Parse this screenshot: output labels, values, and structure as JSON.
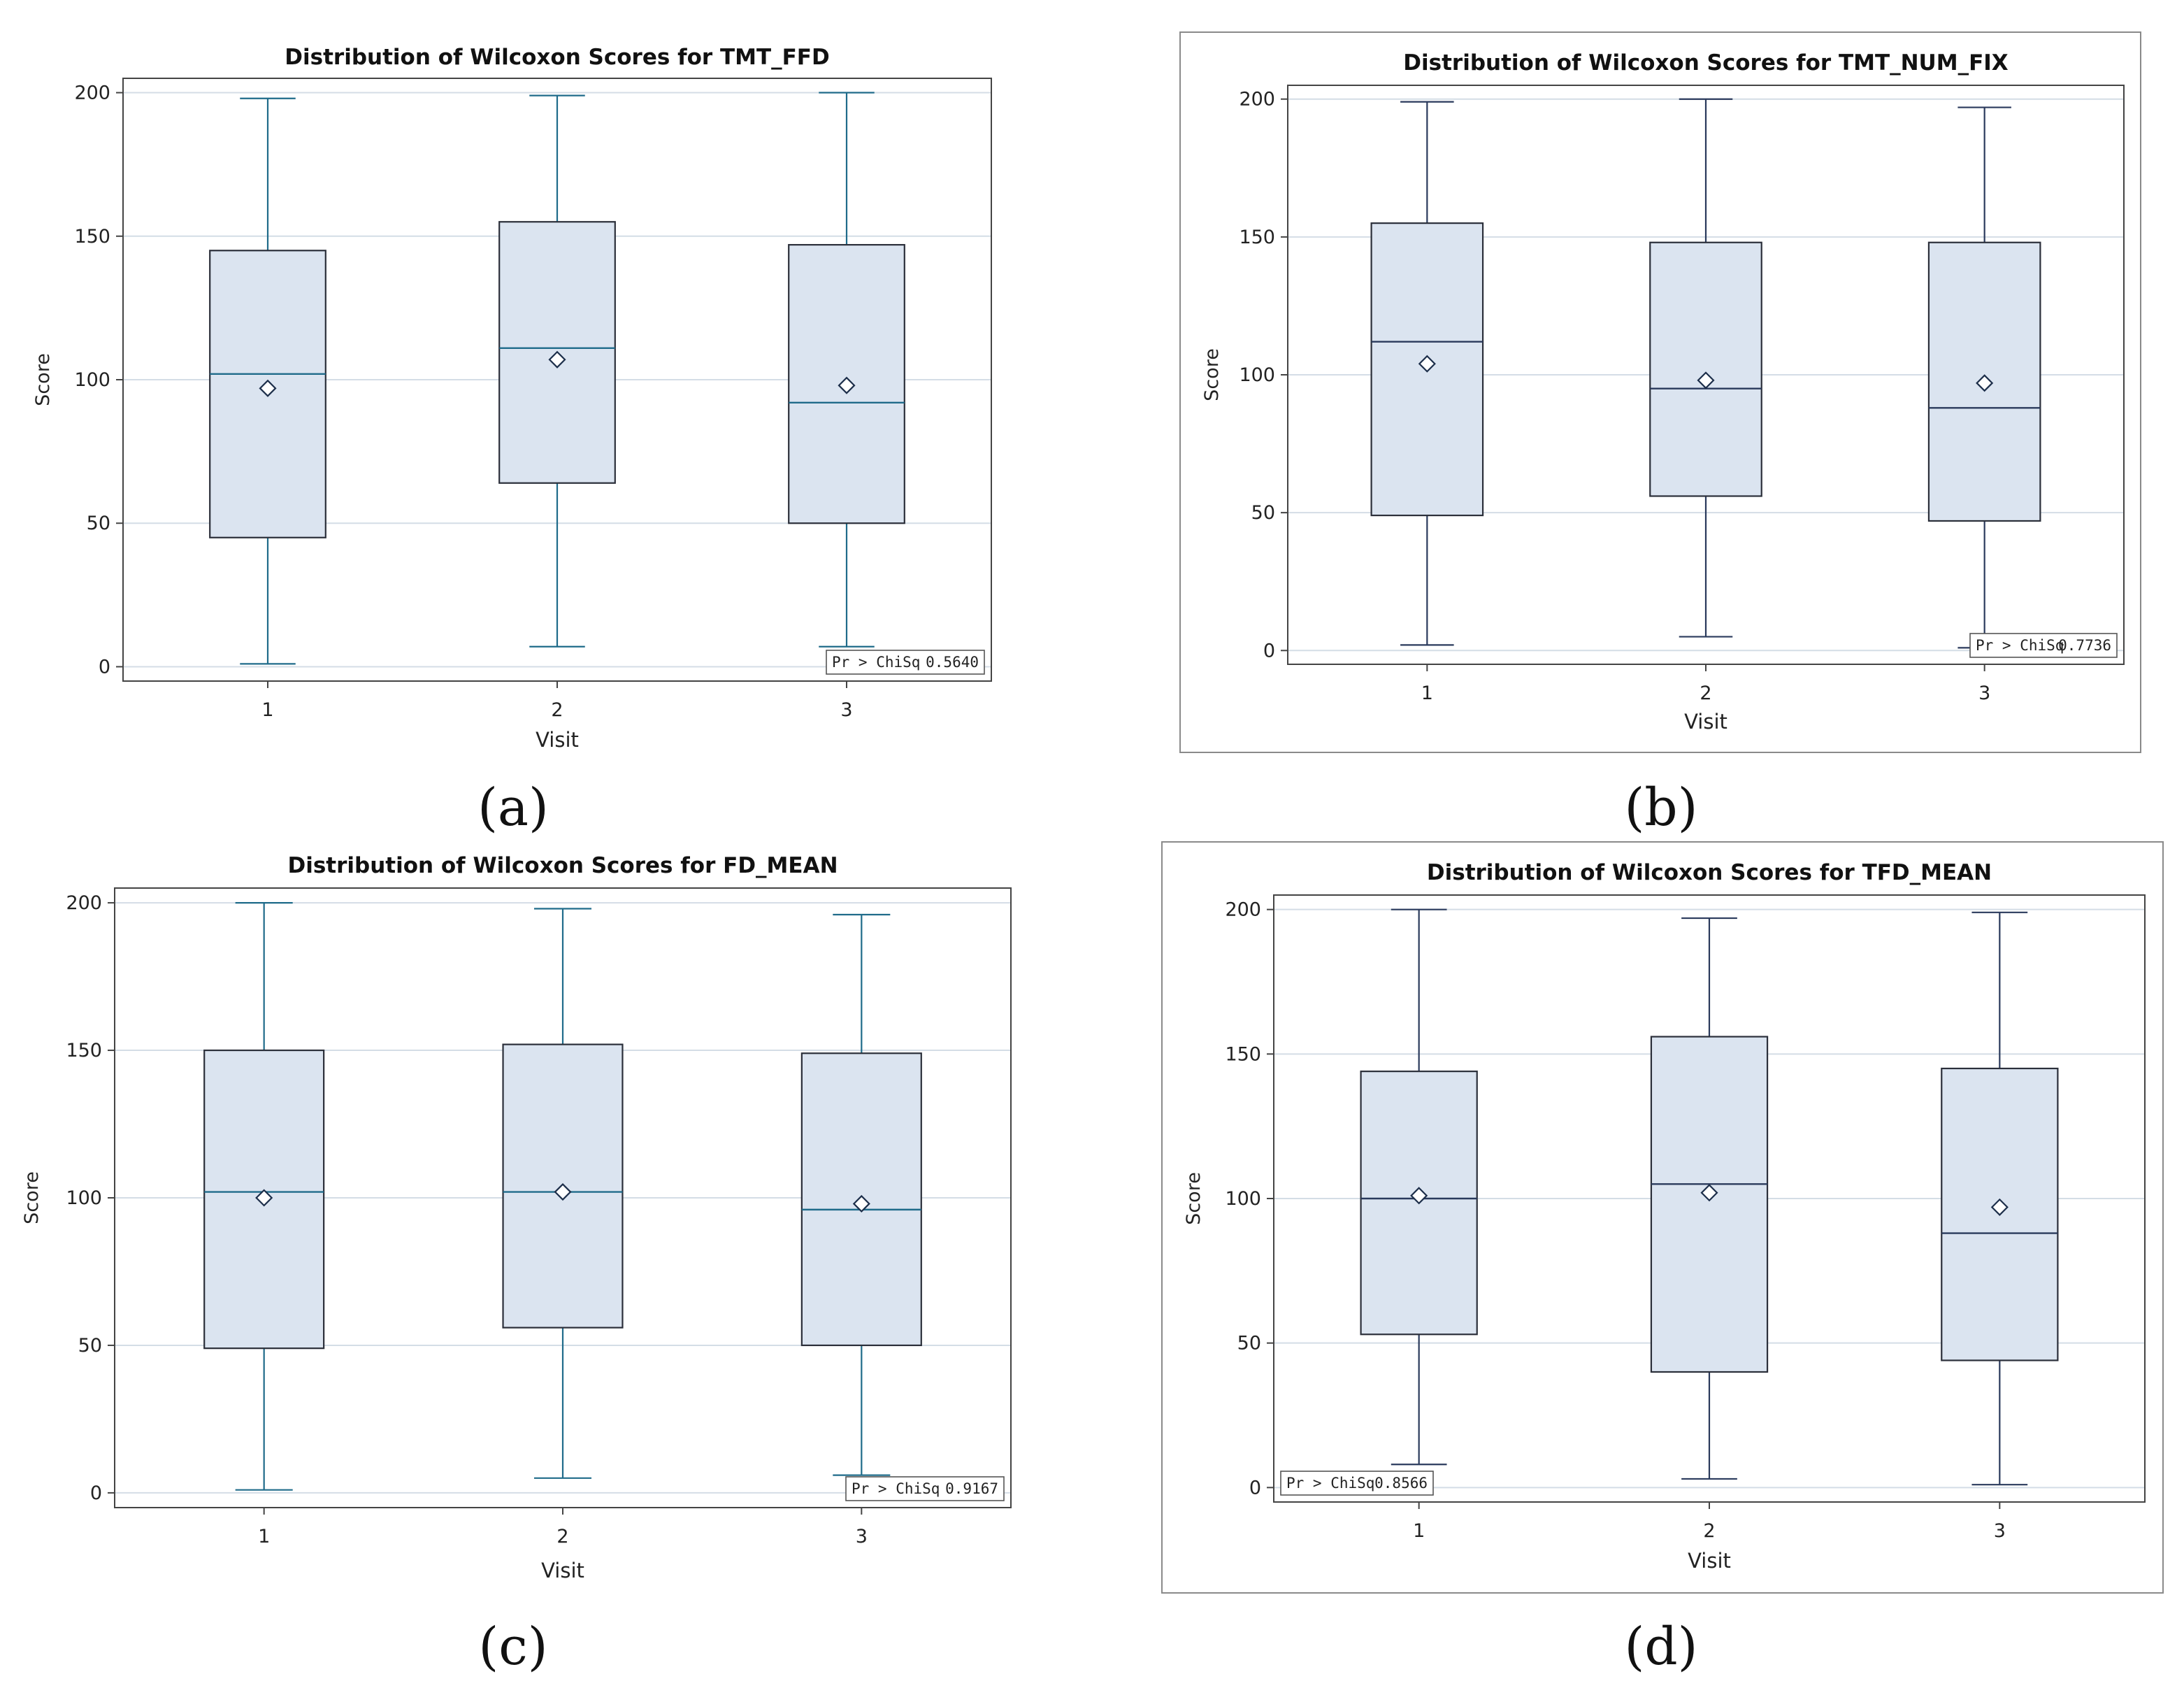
{
  "chart_data": [
    {
      "type": "box",
      "panel_label": "(a)",
      "title": "Distribution of Wilcoxon Scores for TMT_FFD",
      "xlabel": "Visit",
      "ylabel": "Score",
      "ylim": [
        -5,
        205
      ],
      "yticks": [
        0,
        50,
        100,
        150,
        200
      ],
      "categories": [
        "1",
        "2",
        "3"
      ],
      "boxes": [
        {
          "category": "1",
          "min": 1,
          "q1": 45,
          "median": 102,
          "q3": 145,
          "max": 198,
          "mean": 97
        },
        {
          "category": "2",
          "min": 7,
          "q1": 64,
          "median": 111,
          "q3": 155,
          "max": 199,
          "mean": 107
        },
        {
          "category": "3",
          "min": 7,
          "q1": 50,
          "median": 92,
          "q3": 147,
          "max": 200,
          "mean": 98
        }
      ],
      "stat": {
        "label": "Pr > ChiSq",
        "value": "0.5640",
        "position": "bottom-right"
      },
      "colors": {
        "box_fill": "#dbe4f0",
        "line": "#1f6b8a",
        "grid": "#d4dde6",
        "frame": "#444444"
      },
      "framed": false
    },
    {
      "type": "box",
      "panel_label": "(b)",
      "title": "Distribution of Wilcoxon Scores for TMT_NUM_FIX",
      "xlabel": "Visit",
      "ylabel": "Score",
      "ylim": [
        -5,
        205
      ],
      "yticks": [
        0,
        50,
        100,
        150,
        200
      ],
      "categories": [
        "1",
        "2",
        "3"
      ],
      "boxes": [
        {
          "category": "1",
          "min": 2,
          "q1": 49,
          "median": 112,
          "q3": 155,
          "max": 199,
          "mean": 104
        },
        {
          "category": "2",
          "min": 5,
          "q1": 56,
          "median": 95,
          "q3": 148,
          "max": 200,
          "mean": 98
        },
        {
          "category": "3",
          "min": 1,
          "q1": 47,
          "median": 88,
          "q3": 148,
          "max": 197,
          "mean": 97
        }
      ],
      "stat": {
        "label": "Pr > ChiSq",
        "value": "0.7736",
        "position": "bottom-right"
      },
      "colors": {
        "box_fill": "#dbe4f0",
        "line": "#2a3a5c",
        "grid": "#d4dde6",
        "frame": "#444444"
      },
      "framed": true
    },
    {
      "type": "box",
      "panel_label": "(c)",
      "title": "Distribution of Wilcoxon Scores for FD_MEAN",
      "xlabel": "Visit",
      "ylabel": "Score",
      "ylim": [
        -5,
        205
      ],
      "yticks": [
        0,
        50,
        100,
        150,
        200
      ],
      "categories": [
        "1",
        "2",
        "3"
      ],
      "boxes": [
        {
          "category": "1",
          "min": 1,
          "q1": 49,
          "median": 102,
          "q3": 150,
          "max": 200,
          "mean": 100
        },
        {
          "category": "2",
          "min": 5,
          "q1": 56,
          "median": 102,
          "q3": 152,
          "max": 198,
          "mean": 102
        },
        {
          "category": "3",
          "min": 6,
          "q1": 50,
          "median": 96,
          "q3": 149,
          "max": 196,
          "mean": 98
        }
      ],
      "stat": {
        "label": "Pr > ChiSq",
        "value": "0.9167",
        "position": "bottom-right"
      },
      "colors": {
        "box_fill": "#dbe4f0",
        "line": "#1f6b8a",
        "grid": "#d4dde6",
        "frame": "#444444"
      },
      "framed": false
    },
    {
      "type": "box",
      "panel_label": "(d)",
      "title": "Distribution of Wilcoxon Scores for TFD_MEAN",
      "xlabel": "Visit",
      "ylabel": "Score",
      "ylim": [
        -5,
        205
      ],
      "yticks": [
        0,
        50,
        100,
        150,
        200
      ],
      "categories": [
        "1",
        "2",
        "3"
      ],
      "boxes": [
        {
          "category": "1",
          "min": 8,
          "q1": 53,
          "median": 100,
          "q3": 144,
          "max": 200,
          "mean": 101
        },
        {
          "category": "2",
          "min": 3,
          "q1": 40,
          "median": 105,
          "q3": 156,
          "max": 197,
          "mean": 102
        },
        {
          "category": "3",
          "min": 1,
          "q1": 44,
          "median": 88,
          "q3": 145,
          "max": 199,
          "mean": 97
        }
      ],
      "stat": {
        "label": "Pr > ChiSq",
        "value": "0.8566",
        "position": "bottom-left"
      },
      "colors": {
        "box_fill": "#dbe4f0",
        "line": "#2a3a5c",
        "grid": "#d4dde6",
        "frame": "#444444"
      },
      "framed": true
    }
  ]
}
